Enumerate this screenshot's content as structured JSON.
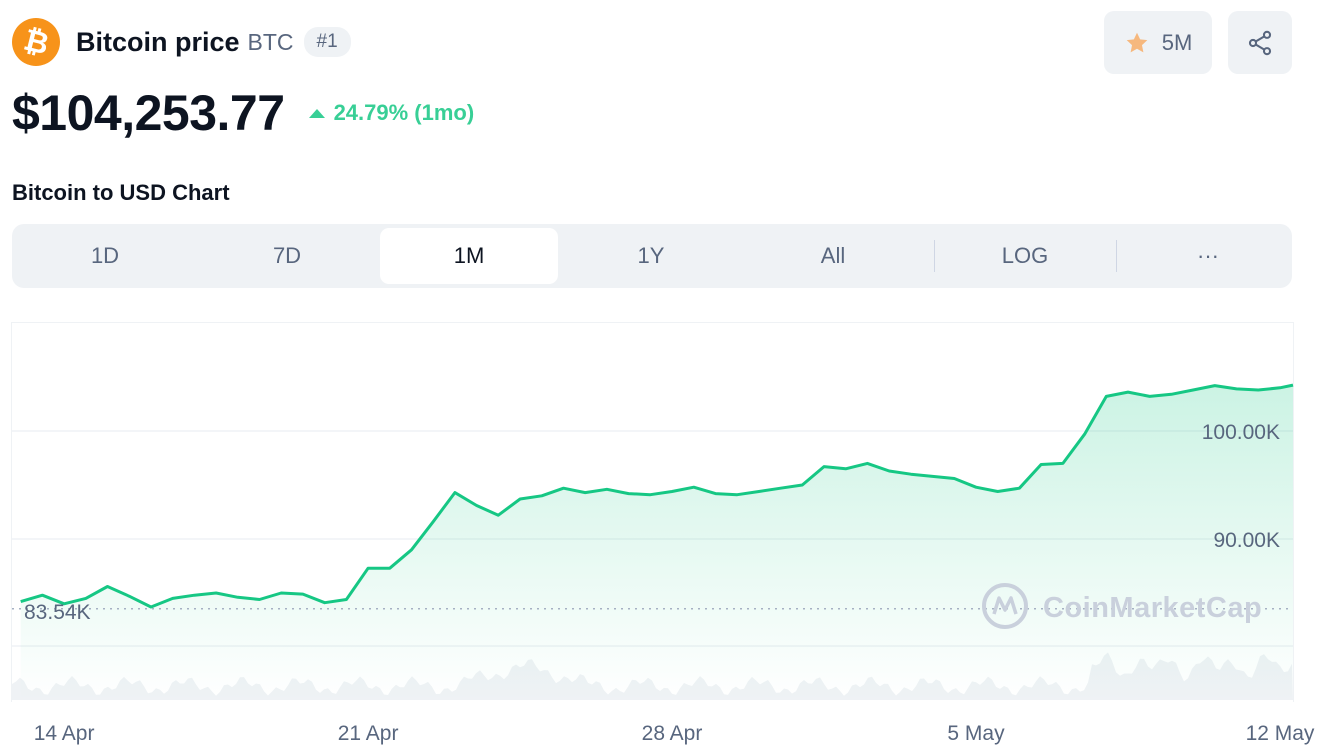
{
  "header": {
    "logo_icon": "bitcoin-logo-icon",
    "coin_name": "Bitcoin price",
    "symbol": "BTC",
    "rank": "#1",
    "watchlist_count": "5M",
    "watchlist_icon": "star-icon",
    "share_icon": "share-icon"
  },
  "price": {
    "value": "$104,253.77",
    "change": "24.79% (1mo)",
    "change_direction": "up",
    "change_color": "#16c784"
  },
  "chart_section": {
    "title": "Bitcoin to USD Chart",
    "tabs": [
      {
        "label": "1D",
        "active": false
      },
      {
        "label": "7D",
        "active": false
      },
      {
        "label": "1M",
        "active": true
      },
      {
        "label": "1Y",
        "active": false
      },
      {
        "label": "All",
        "active": false
      },
      {
        "label": "LOG",
        "active": false
      },
      {
        "label": "···",
        "active": false
      }
    ]
  },
  "chart_data": {
    "type": "area",
    "watermark": "CoinMarketCap",
    "line_color_up": "#16c784",
    "line_color_down": "#ea3943",
    "reference_value": 83540,
    "reference_label": "83.54K",
    "ylim": [
      80000,
      108000
    ],
    "y_ticks": [
      {
        "value": 100000,
        "label": "100.00K"
      },
      {
        "value": 90000,
        "label": "90.00K"
      }
    ],
    "x_ticks": [
      "14 Apr",
      "21 Apr",
      "28 Apr",
      "5 May",
      "12 May"
    ],
    "x_tick_days": [
      1,
      8,
      15,
      22,
      29
    ],
    "xlim_days": [
      -0.2,
      29.3
    ],
    "series": [
      {
        "x_days": [
          0,
          0.5,
          1,
          1.5,
          2,
          2.5,
          3,
          3.5,
          4,
          4.5,
          5,
          5.5,
          6,
          6.5,
          7,
          7.5,
          8,
          8.5,
          9,
          9.5,
          10,
          10.5,
          11,
          11.5,
          12,
          12.5,
          13,
          13.5,
          14,
          14.5,
          15,
          15.5,
          16,
          16.5,
          17,
          17.5,
          18,
          18.5,
          19,
          19.5,
          20,
          20.5,
          21,
          21.5,
          22,
          22.5,
          23,
          23.5,
          24,
          24.5,
          25,
          25.5,
          26,
          26.5,
          27,
          27.5,
          28,
          28.5,
          29,
          29.3
        ],
        "values": [
          84200,
          84800,
          84000,
          84500,
          85600,
          84700,
          83700,
          84500,
          84800,
          85000,
          84600,
          84400,
          85000,
          84900,
          84100,
          84400,
          87300,
          87300,
          89000,
          91600,
          94300,
          93100,
          92200,
          93700,
          94000,
          94700,
          94300,
          94600,
          94200,
          94100,
          94400,
          94800,
          94200,
          94100,
          94400,
          94700,
          95000,
          96700,
          96500,
          97000,
          96300,
          96000,
          95800,
          95600,
          94800,
          94400,
          94700,
          96900,
          97000,
          99700,
          103200,
          103600,
          103200,
          103400,
          103800,
          104200,
          103900,
          103800,
          104000,
          104250
        ]
      }
    ]
  }
}
